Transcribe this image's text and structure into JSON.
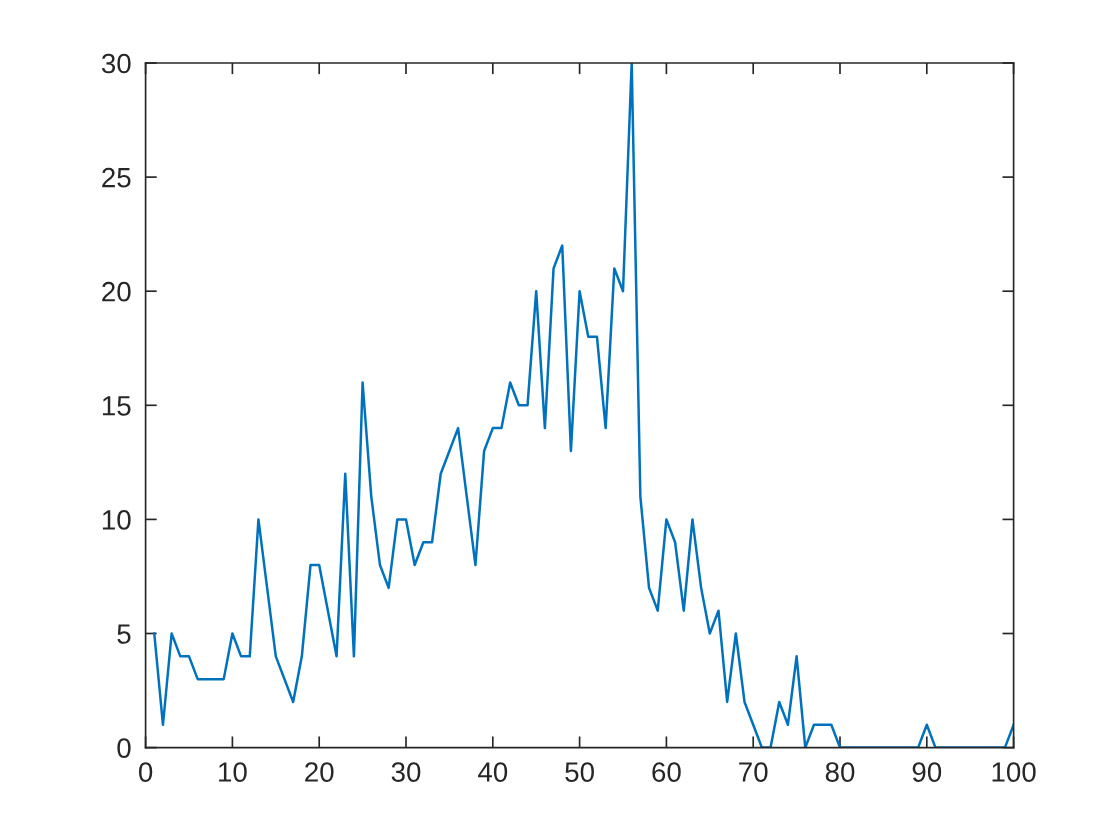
{
  "chart_data": {
    "type": "line",
    "x": [
      1,
      2,
      3,
      4,
      5,
      6,
      7,
      8,
      9,
      10,
      11,
      12,
      13,
      14,
      15,
      16,
      17,
      18,
      19,
      20,
      21,
      22,
      23,
      24,
      25,
      26,
      27,
      28,
      29,
      30,
      31,
      32,
      33,
      34,
      35,
      36,
      37,
      38,
      39,
      40,
      41,
      42,
      43,
      44,
      45,
      46,
      47,
      48,
      49,
      50,
      51,
      52,
      53,
      54,
      55,
      56,
      57,
      58,
      59,
      60,
      61,
      62,
      63,
      64,
      65,
      66,
      67,
      68,
      69,
      70,
      71,
      72,
      73,
      74,
      75,
      76,
      77,
      78,
      79,
      80,
      81,
      82,
      83,
      84,
      85,
      86,
      87,
      88,
      89,
      90,
      91,
      92,
      93,
      94,
      95,
      96,
      97,
      98,
      99,
      100
    ],
    "series": [
      {
        "color": "#0072bd",
        "values": [
          5,
          1,
          5,
          4,
          4,
          3,
          3,
          3,
          3,
          5,
          4,
          4,
          10,
          7,
          4,
          3,
          2,
          4,
          8,
          8,
          6,
          4,
          12,
          4,
          16,
          11,
          8,
          7,
          10,
          10,
          8,
          9,
          9,
          12,
          13,
          14,
          11,
          8,
          13,
          14,
          14,
          16,
          15,
          15,
          20,
          14,
          21,
          22,
          13,
          20,
          18,
          18,
          14,
          21,
          20,
          30,
          11,
          7,
          6,
          10,
          9,
          6,
          10,
          7,
          5,
          6,
          2,
          5,
          2,
          1,
          0,
          0,
          2,
          1,
          4,
          0,
          1,
          1,
          1,
          0,
          0,
          0,
          0,
          0,
          0,
          0,
          0,
          0,
          0,
          1,
          0,
          0,
          0,
          0,
          0,
          0,
          0,
          0,
          0,
          1
        ]
      }
    ],
    "xlim": [
      0,
      100
    ],
    "ylim": [
      0,
      30
    ],
    "xticks": [
      0,
      10,
      20,
      30,
      40,
      50,
      60,
      70,
      80,
      90,
      100
    ],
    "yticks": [
      0,
      5,
      10,
      15,
      20,
      25,
      30
    ],
    "grid": false,
    "marker": "none",
    "line_style": "solid"
  }
}
